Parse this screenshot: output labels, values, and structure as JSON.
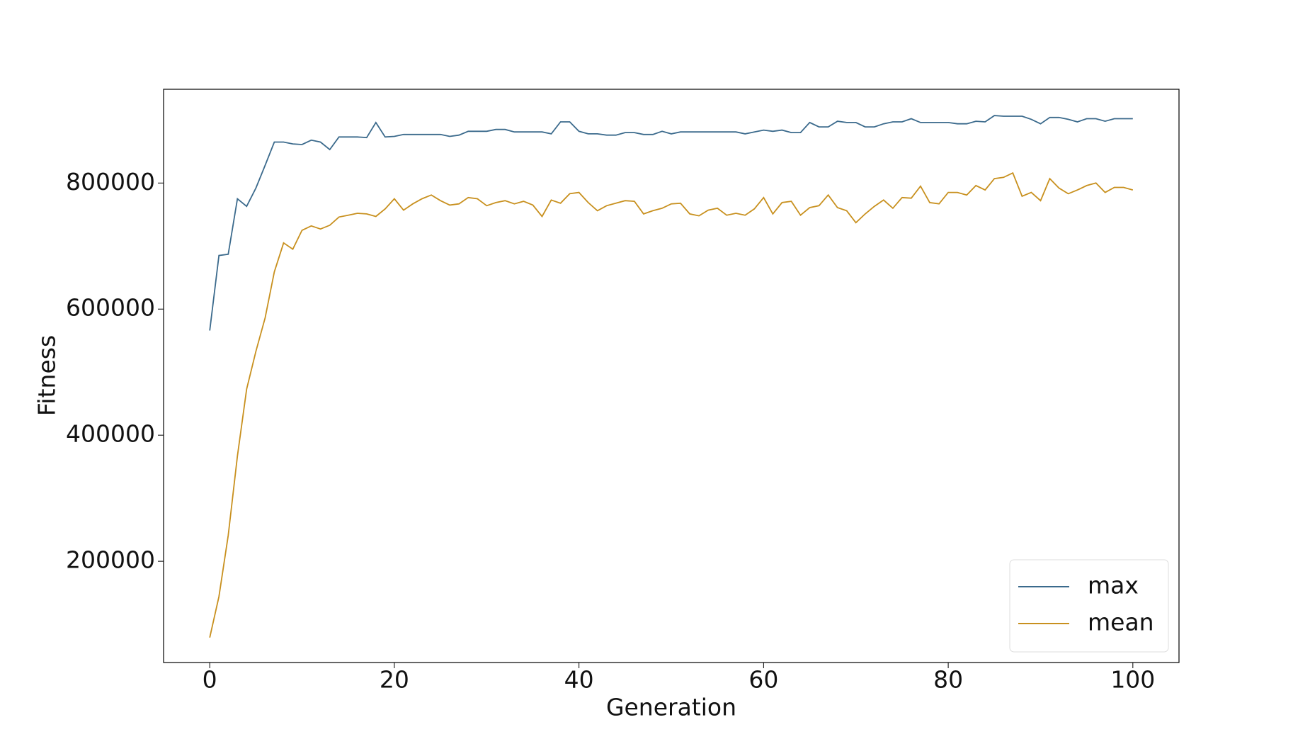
{
  "chart_data": {
    "type": "line",
    "xlabel": "Generation",
    "ylabel": "Fitness",
    "x": [
      0,
      1,
      2,
      3,
      4,
      5,
      6,
      7,
      8,
      9,
      10,
      11,
      12,
      13,
      14,
      15,
      16,
      17,
      18,
      19,
      20,
      21,
      22,
      23,
      24,
      25,
      26,
      27,
      28,
      29,
      30,
      31,
      32,
      33,
      34,
      35,
      36,
      37,
      38,
      39,
      40,
      41,
      42,
      43,
      44,
      45,
      46,
      47,
      48,
      49,
      50,
      51,
      52,
      53,
      54,
      55,
      56,
      57,
      58,
      59,
      60,
      61,
      62,
      63,
      64,
      65,
      66,
      67,
      68,
      69,
      70,
      71,
      72,
      73,
      74,
      75,
      76,
      77,
      78,
      79,
      80,
      81,
      82,
      83,
      84,
      85,
      86,
      87,
      88,
      89,
      90,
      91,
      92,
      93,
      94,
      95,
      96,
      97,
      98,
      99,
      100
    ],
    "series": [
      {
        "name": "max",
        "color": "#3b6a8c",
        "values": [
          566000,
          685000,
          687000,
          775000,
          763000,
          792000,
          828000,
          865000,
          865000,
          862000,
          861000,
          868000,
          865000,
          853000,
          873000,
          873000,
          873000,
          872000,
          896000,
          873000,
          874000,
          877000,
          877000,
          877000,
          877000,
          877000,
          874000,
          876000,
          882000,
          882000,
          882000,
          885000,
          885000,
          881000,
          881000,
          881000,
          881000,
          878000,
          897000,
          897000,
          882000,
          878000,
          878000,
          876000,
          876000,
          880000,
          880000,
          877000,
          877000,
          882000,
          878000,
          881000,
          881000,
          881000,
          881000,
          881000,
          881000,
          881000,
          878000,
          881000,
          884000,
          882000,
          884000,
          880000,
          880000,
          896000,
          889000,
          889000,
          898000,
          896000,
          896000,
          889000,
          889000,
          894000,
          897000,
          897000,
          902000,
          896000,
          896000,
          896000,
          896000,
          894000,
          894000,
          898000,
          897000,
          907000,
          906000,
          906000,
          906000,
          901000,
          894000,
          904000,
          904000,
          901000,
          897000,
          902000,
          902000,
          898000,
          902000,
          902000,
          902000
        ]
      },
      {
        "name": "mean",
        "color": "#c8901e",
        "values": [
          79000,
          144000,
          241000,
          367000,
          473000,
          533000,
          586000,
          659000,
          705000,
          695000,
          725000,
          732000,
          727000,
          733000,
          746000,
          749000,
          752000,
          751000,
          747000,
          759000,
          775000,
          757000,
          767000,
          775000,
          781000,
          772000,
          765000,
          767000,
          777000,
          775000,
          764000,
          769000,
          772000,
          767000,
          771000,
          765000,
          747000,
          773000,
          768000,
          783000,
          785000,
          769000,
          756000,
          764000,
          768000,
          772000,
          771000,
          751000,
          756000,
          760000,
          767000,
          768000,
          751000,
          748000,
          757000,
          760000,
          749000,
          752000,
          749000,
          759000,
          777000,
          751000,
          769000,
          771000,
          749000,
          761000,
          764000,
          781000,
          761000,
          756000,
          737000,
          751000,
          763000,
          773000,
          760000,
          777000,
          776000,
          795000,
          769000,
          767000,
          785000,
          785000,
          781000,
          796000,
          789000,
          807000,
          809000,
          816000,
          779000,
          785000,
          772000,
          807000,
          792000,
          783000,
          789000,
          796000,
          800000,
          785000,
          793000,
          793000,
          789000
        ]
      }
    ],
    "xlim": [
      -5,
      105
    ],
    "xticks": [
      0,
      20,
      40,
      60,
      80,
      100
    ],
    "ylim": [
      39400,
      948700
    ],
    "yticks": [
      200000,
      400000,
      600000,
      800000
    ],
    "grid": false,
    "legend": "lower right"
  }
}
